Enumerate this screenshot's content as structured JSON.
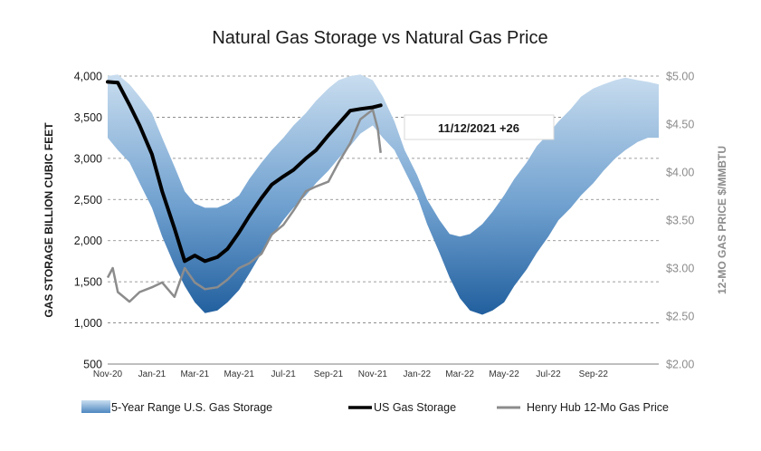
{
  "chart_data": {
    "type": "line",
    "title": "Natural Gas Storage vs Natural Gas Price",
    "ylabel": "GAS STORAGE BILLION CUBIC FEET",
    "y2label": "12-MO GAS PRICE $/MMBTU",
    "ylim": [
      500,
      4000
    ],
    "y2lim": [
      2.0,
      5.0
    ],
    "y_ticks": [
      "500",
      "1,000",
      "1,500",
      "2,000",
      "2,500",
      "3,000",
      "3,500",
      "4,000"
    ],
    "y2_ticks": [
      "$2.00",
      "$2.50",
      "$3.00",
      "$3.50",
      "$4.00",
      "$4.50",
      "$5.00"
    ],
    "x_ticks": [
      "Nov-20",
      "Jan-21",
      "Mar-21",
      "May-21",
      "Jul-21",
      "Sep-21",
      "Nov-21",
      "Jan-22",
      "Mar-22",
      "May-22",
      "Jul-22",
      "Sep-22"
    ],
    "x_range": [
      "2020-11-01",
      "2022-11-30"
    ],
    "grid": true,
    "legend_position": "bottom",
    "annotation": "11/12/2021 +26",
    "colors": {
      "band_light": "#b9d3e8",
      "band_dark": "#2d6fad",
      "storage": "#000000",
      "price": "#8c8c8c"
    },
    "series": [
      {
        "name": "5-Year Range U.S. Gas Storage",
        "kind": "range",
        "x": [
          "2020-11-01",
          "2020-11-15",
          "2020-12-01",
          "2020-12-15",
          "2021-01-01",
          "2021-01-15",
          "2021-02-01",
          "2021-02-15",
          "2021-03-01",
          "2021-03-15",
          "2021-04-01",
          "2021-04-15",
          "2021-05-01",
          "2021-05-15",
          "2021-06-01",
          "2021-06-15",
          "2021-07-01",
          "2021-07-15",
          "2021-08-01",
          "2021-08-15",
          "2021-09-01",
          "2021-09-15",
          "2021-10-01",
          "2021-10-15",
          "2021-11-01",
          "2021-11-15",
          "2021-12-01",
          "2021-12-15",
          "2022-01-01",
          "2022-01-15",
          "2022-02-01",
          "2022-02-15",
          "2022-03-01",
          "2022-03-15",
          "2022-04-01",
          "2022-04-15",
          "2022-05-01",
          "2022-05-15",
          "2022-06-01",
          "2022-06-15",
          "2022-07-01",
          "2022-07-15",
          "2022-08-01",
          "2022-08-15",
          "2022-09-01",
          "2022-09-15",
          "2022-10-01",
          "2022-10-15",
          "2022-11-01",
          "2022-11-15",
          "2022-11-30"
        ],
        "low": [
          3250,
          3100,
          2950,
          2700,
          2400,
          2050,
          1700,
          1450,
          1250,
          1120,
          1150,
          1250,
          1400,
          1600,
          1850,
          2050,
          2250,
          2400,
          2550,
          2700,
          2850,
          3000,
          3150,
          3300,
          3400,
          3250,
          3100,
          2850,
          2550,
          2200,
          1850,
          1550,
          1300,
          1150,
          1100,
          1150,
          1250,
          1450,
          1650,
          1850,
          2050,
          2250,
          2400,
          2550,
          2700,
          2850,
          3000,
          3100,
          3200,
          3250,
          3250
        ],
        "high": [
          4000,
          4020,
          3900,
          3750,
          3550,
          3250,
          2900,
          2600,
          2450,
          2400,
          2400,
          2450,
          2550,
          2750,
          2950,
          3100,
          3250,
          3400,
          3550,
          3700,
          3850,
          3950,
          4000,
          4020,
          3950,
          3750,
          3450,
          3100,
          2800,
          2500,
          2250,
          2080,
          2050,
          2080,
          2200,
          2350,
          2550,
          2750,
          2950,
          3150,
          3300,
          3450,
          3600,
          3750,
          3850,
          3900,
          3950,
          3980,
          3950,
          3930,
          3900
        ]
      },
      {
        "name": "US Gas Storage",
        "x": [
          "2020-11-01",
          "2020-11-15",
          "2020-12-01",
          "2020-12-15",
          "2021-01-01",
          "2021-01-15",
          "2021-02-01",
          "2021-02-15",
          "2021-03-01",
          "2021-03-15",
          "2021-04-01",
          "2021-04-15",
          "2021-05-01",
          "2021-05-15",
          "2021-06-01",
          "2021-06-15",
          "2021-07-01",
          "2021-07-15",
          "2021-08-01",
          "2021-08-15",
          "2021-09-01",
          "2021-09-15",
          "2021-10-01",
          "2021-10-15",
          "2021-11-01",
          "2021-11-12"
        ],
        "values": [
          3930,
          3920,
          3650,
          3400,
          3050,
          2600,
          2150,
          1750,
          1820,
          1750,
          1800,
          1900,
          2100,
          2300,
          2520,
          2680,
          2780,
          2860,
          3000,
          3100,
          3280,
          3420,
          3580,
          3600,
          3620,
          3645
        ]
      },
      {
        "name": "Henry Hub 12-Mo Gas Price",
        "axis": "right",
        "x": [
          "2020-11-01",
          "2020-11-08",
          "2020-11-15",
          "2020-12-01",
          "2020-12-15",
          "2021-01-01",
          "2021-01-15",
          "2021-02-01",
          "2021-02-08",
          "2021-02-15",
          "2021-03-01",
          "2021-03-15",
          "2021-04-01",
          "2021-04-15",
          "2021-05-01",
          "2021-05-15",
          "2021-06-01",
          "2021-06-15",
          "2021-07-01",
          "2021-07-15",
          "2021-08-01",
          "2021-08-15",
          "2021-09-01",
          "2021-09-15",
          "2021-10-01",
          "2021-10-15",
          "2021-11-01",
          "2021-11-08",
          "2021-11-12"
        ],
        "values": [
          2.9,
          3.0,
          2.75,
          2.65,
          2.75,
          2.8,
          2.85,
          2.7,
          2.85,
          3.0,
          2.85,
          2.78,
          2.8,
          2.88,
          3.0,
          3.05,
          3.15,
          3.35,
          3.45,
          3.6,
          3.8,
          3.85,
          3.9,
          4.1,
          4.3,
          4.55,
          4.65,
          4.45,
          4.2
        ]
      }
    ]
  }
}
